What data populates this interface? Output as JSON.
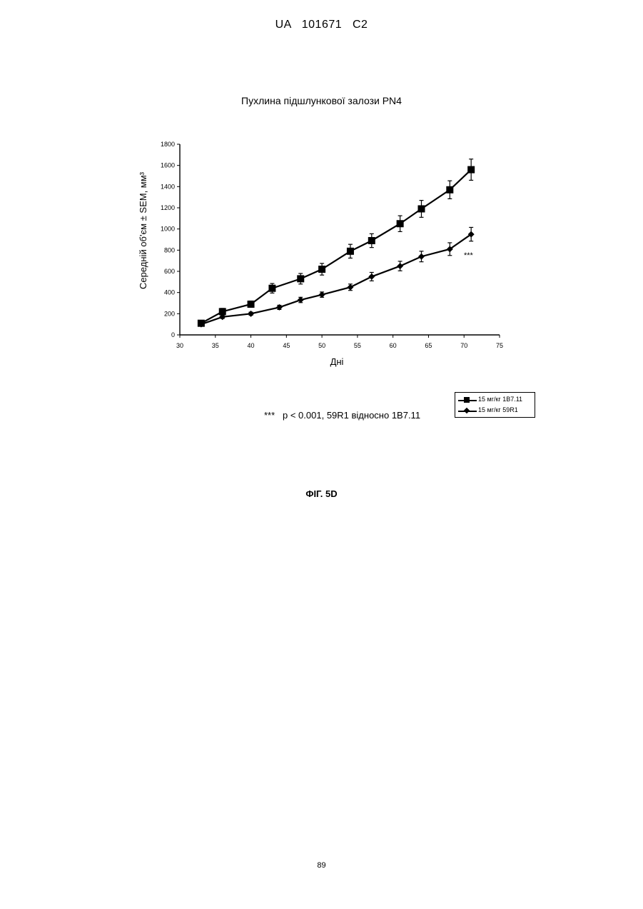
{
  "page": {
    "header": "UA   101671   C2",
    "figure_label": "ФІГ. 5D",
    "page_number": "89"
  },
  "chart_data": {
    "type": "line",
    "title": "Пухлина підшлункової залози PN4",
    "xlabel": "Дні",
    "ylabel": "Середній об'єм ± SEM, мм³",
    "xlim": [
      30,
      75
    ],
    "ylim": [
      0,
      1800
    ],
    "x_ticks": [
      "30",
      "35",
      "40",
      "45",
      "50",
      "55",
      "60",
      "65",
      "70",
      "75"
    ],
    "y_ticks": [
      "0",
      "200",
      "400",
      "600",
      "800",
      "1000",
      "1200",
      "1400",
      "1600",
      "1800"
    ],
    "x_tick_values": [
      30,
      35,
      40,
      45,
      50,
      55,
      60,
      65,
      70,
      75
    ],
    "y_tick_values": [
      0,
      200,
      400,
      600,
      800,
      1000,
      1200,
      1400,
      1600,
      1800
    ],
    "grid": false,
    "legend_position": "bottom-right",
    "series": [
      {
        "name": "15 мг/кг 1B7.11",
        "marker": "square",
        "x": [
          33,
          36,
          40,
          43,
          47,
          50,
          54,
          57,
          61,
          64,
          68,
          71
        ],
        "y": [
          110,
          220,
          290,
          440,
          530,
          620,
          790,
          890,
          1050,
          1190,
          1370,
          1560
        ],
        "err": [
          20,
          30,
          30,
          45,
          50,
          55,
          65,
          65,
          75,
          80,
          85,
          100
        ]
      },
      {
        "name": "15 мг/кг 59R1",
        "marker": "diamond",
        "x": [
          33,
          36,
          40,
          44,
          47,
          50,
          54,
          57,
          61,
          64,
          68,
          71
        ],
        "y": [
          100,
          170,
          200,
          260,
          330,
          380,
          450,
          550,
          650,
          740,
          810,
          950
        ],
        "err": [
          10,
          15,
          15,
          20,
          25,
          25,
          30,
          40,
          45,
          50,
          60,
          65
        ]
      }
    ],
    "annotations": [
      "***"
    ],
    "footnote": "***   p < 0.001, 59R1 відносно 1B7.11"
  }
}
